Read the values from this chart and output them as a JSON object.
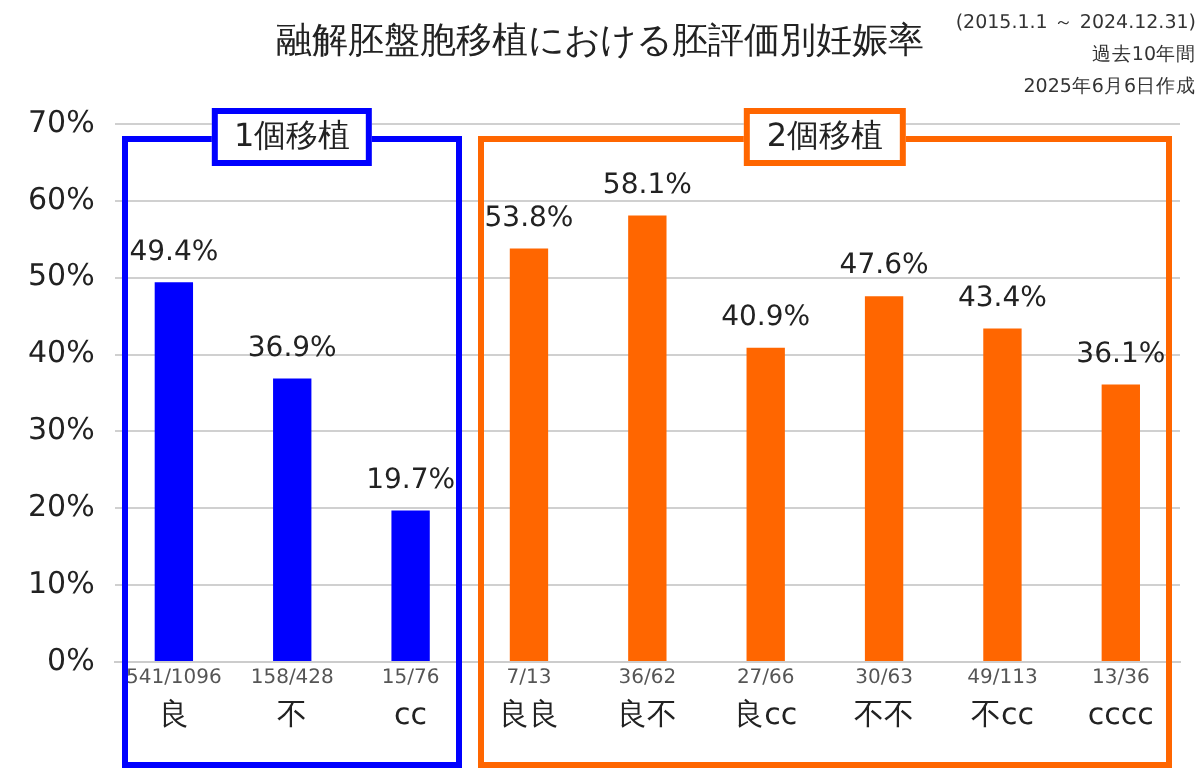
{
  "chart_data": {
    "type": "bar",
    "title": "融解胚盤胞移植における胚評価別妊娠率",
    "categories": [
      "良",
      "不",
      "cc",
      "良良",
      "良不",
      "良cc",
      "不不",
      "不cc",
      "cccc"
    ],
    "series": [
      {
        "color": "#0000ff",
        "values": [
          49.4,
          36.9,
          19.7,
          null,
          null,
          null,
          null,
          null,
          null
        ],
        "value_labels": [
          "49.4%",
          "36.9%",
          "19.7%",
          null,
          null,
          null,
          null,
          null,
          null
        ]
      },
      {
        "color": "#ff6600",
        "values": [
          null,
          null,
          null,
          53.8,
          58.1,
          40.9,
          47.6,
          43.4,
          36.1
        ],
        "value_labels": [
          null,
          null,
          null,
          "53.8%",
          "58.1%",
          "40.9%",
          "47.6%",
          "43.4%",
          "36.1%"
        ]
      }
    ],
    "ylim": [
      0,
      70
    ],
    "yticks": [
      {
        "value": 0,
        "label": "0%"
      },
      {
        "value": 10,
        "label": "10%"
      },
      {
        "value": 20,
        "label": "20%"
      },
      {
        "value": 30,
        "label": "30%"
      },
      {
        "value": 40,
        "label": "40%"
      },
      {
        "value": 50,
        "label": "50%"
      },
      {
        "value": 60,
        "label": "60%"
      },
      {
        "value": 70,
        "label": "70%"
      }
    ],
    "grid": "y",
    "legend": false,
    "annotations": [
      "1個移植",
      "2個移植",
      "(2015.1.1 ～ 2024.12.31)",
      "過去10年間",
      "2025年6月6日作成",
      "541/1096",
      "158/428",
      "15/76",
      "7/13",
      "36/62",
      "27/66",
      "30/63",
      "49/113",
      "13/36"
    ]
  }
}
